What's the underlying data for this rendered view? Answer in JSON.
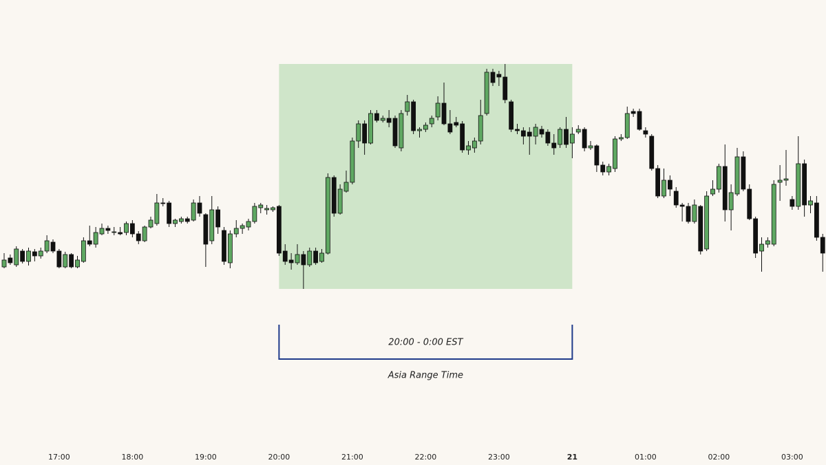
{
  "chart_data": {
    "type": "candlestick",
    "categories": [
      null,
      null,
      null,
      null,
      null,
      null,
      null,
      null,
      null,
      "17:00",
      null,
      null,
      null,
      null,
      null,
      null,
      null,
      null,
      null,
      null,
      null,
      "18:00",
      null,
      null,
      null,
      null,
      null,
      null,
      null,
      null,
      null,
      null,
      null,
      "19:00",
      null,
      null,
      null,
      null,
      null,
      null,
      null,
      null,
      null,
      null,
      null,
      "20:00",
      null,
      null,
      null,
      null,
      null,
      null,
      null,
      null,
      null,
      null,
      null,
      "21:00",
      null,
      null,
      null,
      null,
      null,
      null,
      null,
      null,
      null,
      null,
      null,
      "22:00",
      null,
      null,
      null,
      null,
      null,
      null,
      null,
      null,
      null,
      null,
      null,
      "23:00",
      null,
      null,
      null,
      null,
      null,
      null,
      null,
      null,
      null,
      null,
      null,
      "21",
      null,
      null,
      null,
      null,
      null,
      null,
      null,
      null,
      null,
      null,
      null,
      "01:00",
      null,
      null,
      null,
      null,
      null,
      null,
      null,
      null,
      null,
      null,
      null,
      "02:00",
      null,
      null,
      null,
      null,
      null,
      null,
      null,
      null,
      null,
      null,
      null,
      "03:00",
      null,
      null,
      null,
      null,
      null
    ],
    "open": [
      112,
      125,
      115,
      135,
      120,
      134,
      128,
      135,
      148,
      135,
      112,
      130,
      112,
      120,
      150,
      145,
      160,
      168,
      162,
      162,
      162,
      175,
      160,
      150,
      170,
      175,
      205,
      205,
      175,
      178,
      182,
      180,
      205,
      188,
      150,
      195,
      165,
      118,
      160,
      168,
      170,
      178,
      198,
      195,
      195,
      200,
      135,
      122,
      118,
      130,
      115,
      135,
      120,
      132,
      242,
      190,
      222,
      235,
      295,
      320,
      292,
      335,
      325,
      328,
      328,
      285,
      338,
      352,
      310,
      312,
      320,
      330,
      350,
      320,
      322,
      320,
      282,
      285,
      295,
      335,
      395,
      392,
      388,
      352,
      312,
      310,
      308,
      302,
      312,
      308,
      292,
      290,
      312,
      292,
      308,
      312,
      285,
      288,
      260,
      250,
      255,
      298,
      300,
      338,
      338,
      310,
      302,
      255,
      215,
      238,
      222,
      202,
      200,
      178,
      200,
      138,
      218,
      225,
      258,
      195,
      218,
      272,
      225,
      182,
      135,
      145,
      145,
      235,
      238,
      210,
      200,
      262,
      202,
      205,
      155
    ],
    "high": [
      132,
      130,
      142,
      138,
      140,
      138,
      140,
      158,
      152,
      138,
      134,
      132,
      128,
      155,
      172,
      170,
      175,
      172,
      170,
      170,
      178,
      180,
      164,
      172,
      185,
      218,
      212,
      208,
      182,
      185,
      185,
      210,
      215,
      190,
      215,
      200,
      170,
      165,
      180,
      175,
      182,
      205,
      205,
      202,
      200,
      202,
      145,
      132,
      145,
      135,
      140,
      140,
      138,
      248,
      245,
      232,
      252,
      300,
      325,
      325,
      340,
      340,
      332,
      340,
      332,
      340,
      362,
      355,
      315,
      322,
      332,
      360,
      380,
      340,
      330,
      324,
      295,
      300,
      355,
      400,
      400,
      397,
      407,
      355,
      320,
      315,
      315,
      320,
      317,
      312,
      305,
      315,
      330,
      315,
      318,
      315,
      295,
      290,
      265,
      262,
      302,
      305,
      345,
      342,
      342,
      315,
      305,
      260,
      255,
      245,
      228,
      205,
      205,
      210,
      202,
      222,
      238,
      262,
      290,
      232,
      285,
      280,
      232,
      185,
      155,
      155,
      238,
      260,
      282,
      215,
      302,
      268,
      215,
      215,
      160
    ],
    "low": [
      110,
      115,
      112,
      117,
      114,
      120,
      124,
      132,
      132,
      110,
      110,
      110,
      110,
      118,
      142,
      140,
      158,
      160,
      158,
      158,
      158,
      155,
      145,
      148,
      168,
      172,
      200,
      170,
      170,
      175,
      175,
      178,
      185,
      112,
      145,
      160,
      115,
      110,
      155,
      160,
      165,
      175,
      190,
      188,
      192,
      128,
      115,
      108,
      115,
      80,
      112,
      115,
      118,
      130,
      185,
      188,
      220,
      232,
      285,
      275,
      290,
      322,
      322,
      315,
      285,
      280,
      332,
      305,
      300,
      308,
      315,
      325,
      318,
      305,
      315,
      278,
      275,
      278,
      290,
      332,
      375,
      375,
      350,
      308,
      305,
      290,
      275,
      290,
      300,
      288,
      275,
      285,
      285,
      270,
      305,
      280,
      282,
      250,
      245,
      245,
      250,
      295,
      298,
      330,
      310,
      300,
      252,
      212,
      212,
      215,
      198,
      178,
      175,
      175,
      130,
      135,
      215,
      220,
      178,
      165,
      215,
      222,
      180,
      125,
      105,
      140,
      142,
      208,
      230,
      195,
      195,
      185,
      190,
      150,
      105
    ],
    "close": [
      122,
      118,
      138,
      120,
      135,
      128,
      135,
      150,
      135,
      112,
      130,
      112,
      122,
      150,
      145,
      162,
      168,
      165,
      163,
      160,
      175,
      160,
      150,
      170,
      180,
      205,
      204,
      175,
      180,
      182,
      178,
      205,
      190,
      145,
      195,
      170,
      120,
      160,
      168,
      172,
      178,
      200,
      202,
      197,
      198,
      132,
      120,
      118,
      130,
      115,
      135,
      118,
      132,
      242,
      190,
      225,
      235,
      295,
      320,
      292,
      335,
      325,
      328,
      322,
      288,
      335,
      352,
      310,
      312,
      318,
      328,
      350,
      320,
      308,
      318,
      282,
      288,
      295,
      332,
      395,
      380,
      388,
      355,
      312,
      310,
      302,
      302,
      315,
      305,
      292,
      285,
      312,
      290,
      305,
      312,
      285,
      288,
      260,
      250,
      258,
      298,
      300,
      335,
      335,
      312,
      305,
      255,
      215,
      238,
      225,
      202,
      200,
      178,
      202,
      135,
      215,
      225,
      258,
      195,
      220,
      272,
      225,
      182,
      132,
      145,
      150,
      232,
      238,
      240,
      200,
      262,
      202,
      208,
      155,
      132
    ],
    "up_color": "#5fa862",
    "down_color": "#111111",
    "ylim": [
      -150,
      500
    ],
    "highlight": {
      "start": 45,
      "end": 93,
      "color": "#cfe5c9",
      "label": "20:00 - 0:00 EST",
      "caption": "Asia Range Time",
      "bracket_color": "#1e3a8a"
    }
  }
}
